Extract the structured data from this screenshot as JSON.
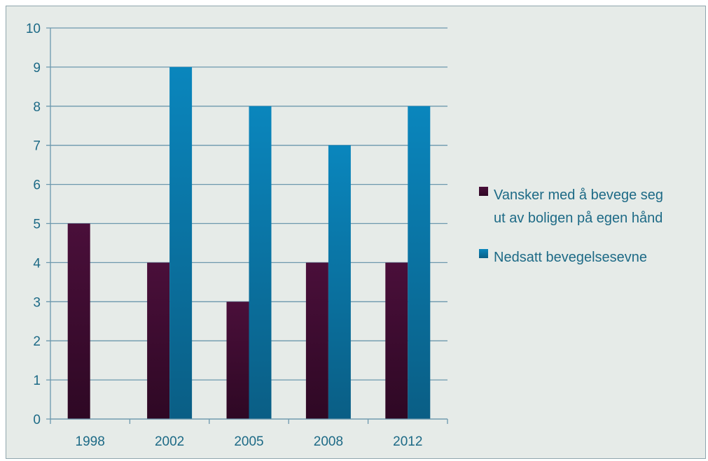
{
  "chart_data": {
    "type": "bar",
    "title": "",
    "xlabel": "",
    "ylabel": "",
    "categories": [
      "1998",
      "2002",
      "2005",
      "2008",
      "2012"
    ],
    "ylim": [
      0,
      10
    ],
    "yticks": [
      "0",
      "1",
      "2",
      "3",
      "4",
      "5",
      "6",
      "7",
      "8",
      "9",
      "10"
    ],
    "grid": true,
    "legend_position": "right",
    "series": [
      {
        "name": "Vansker med å bevege seg ut av boligen på egen hånd",
        "name_lines": [
          "Vansker med å bevege seg",
          "ut av boligen på egen hånd"
        ],
        "values": [
          5,
          4,
          3,
          4,
          4
        ],
        "color": "#4a0f3a",
        "color_dark": "#2e0824"
      },
      {
        "name": "Nedsatt bevegelsesevne",
        "name_lines": [
          "Nedsatt bevegelsesevne"
        ],
        "values": [
          null,
          9,
          8,
          7,
          8
        ],
        "color": "#0a86bd",
        "color_dark": "#0a5e85"
      }
    ],
    "colors": {
      "background": "#e6ebe8",
      "gridline": "#6c98ad",
      "axis": "#6c98ad",
      "text": "#1d6a86"
    }
  }
}
